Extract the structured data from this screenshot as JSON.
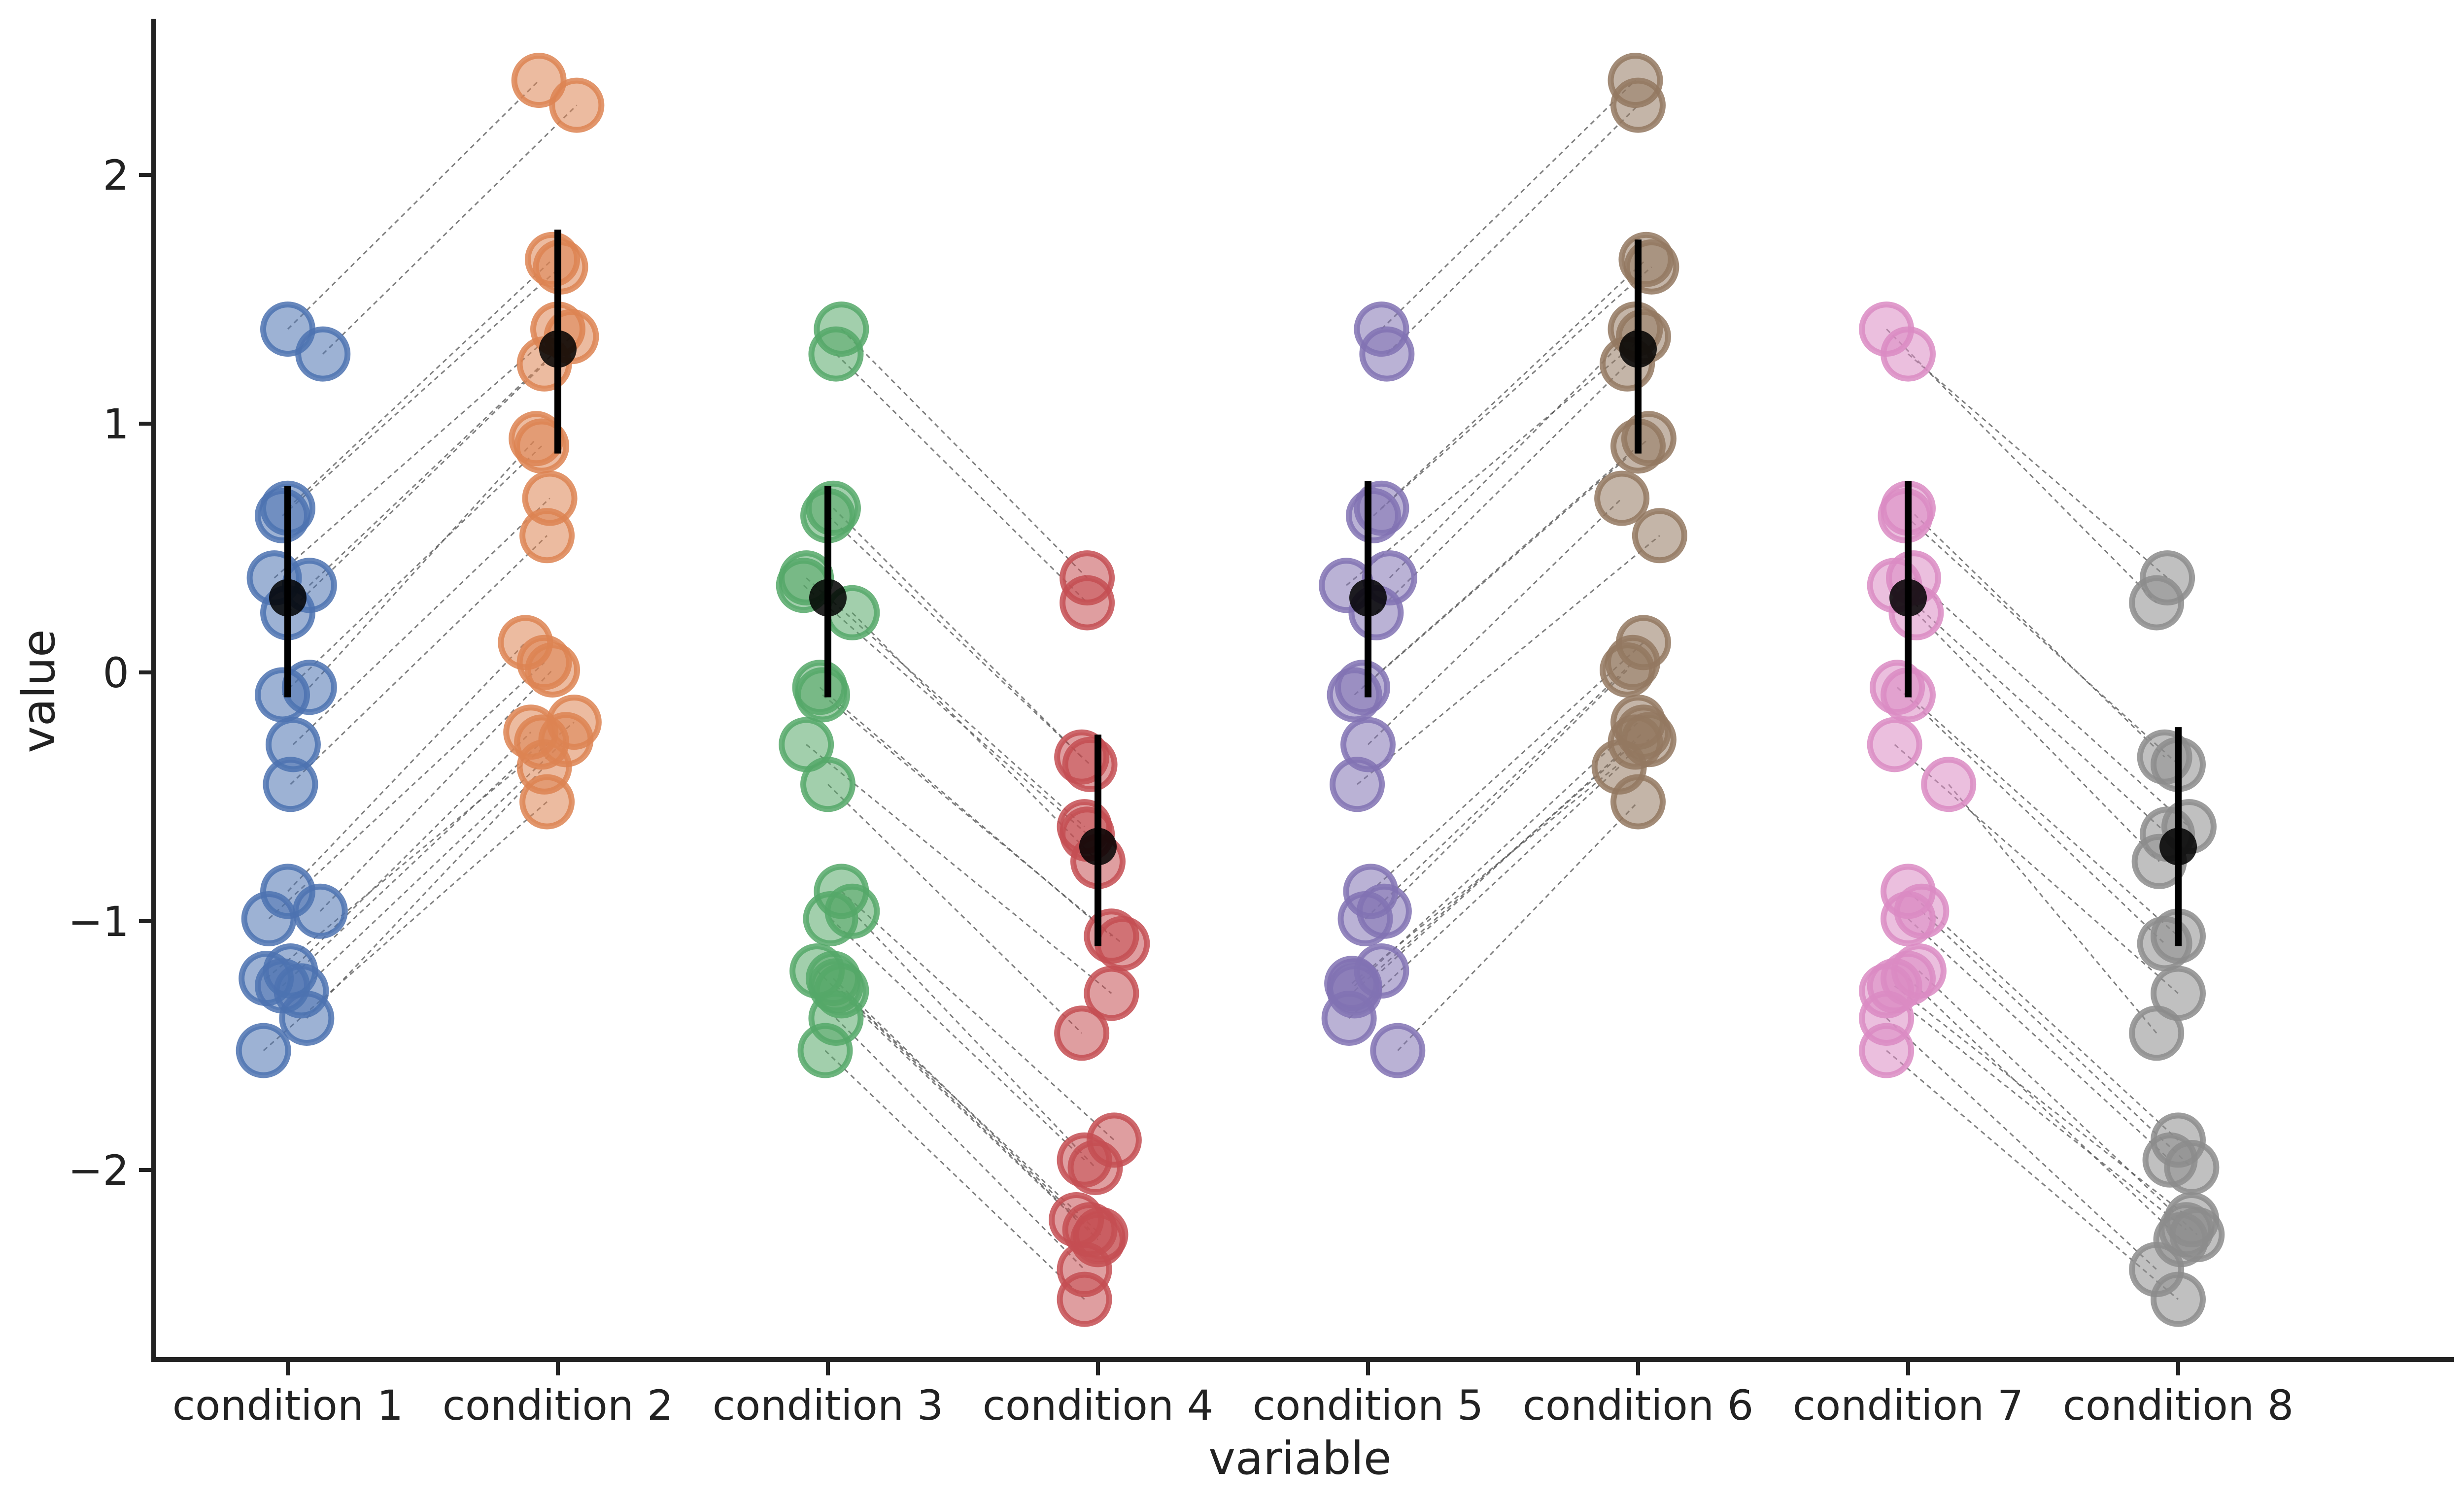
{
  "chart_data": {
    "type": "scatter",
    "title": "",
    "xlabel": "variable",
    "ylabel": "value",
    "ylim": [
      -2.7,
      2.6
    ],
    "yticks": [
      {
        "value": 2,
        "label": "2"
      },
      {
        "value": 1,
        "label": "1"
      },
      {
        "value": 0,
        "label": "0"
      },
      {
        "value": -1,
        "label": "−1"
      },
      {
        "value": -2,
        "label": "−2"
      }
    ],
    "categories": [
      "condition 1",
      "condition 2",
      "condition 3",
      "condition 4",
      "condition 5",
      "condition 6",
      "condition 7",
      "condition 8"
    ],
    "colors": [
      "#4c72b0",
      "#dd8452",
      "#55a868",
      "#c44e52",
      "#8172b3",
      "#937860",
      "#da8bc3",
      "#8c8c8c"
    ],
    "grid": false,
    "legend": "none",
    "series": [
      {
        "category": "condition 1",
        "points": [
          {
            "x": 0.0,
            "y": 1.38
          },
          {
            "x": 0.13,
            "y": 1.28
          },
          {
            "x": 0.0,
            "y": 0.66
          },
          {
            "x": -0.02,
            "y": 0.63
          },
          {
            "x": -0.05,
            "y": 0.38
          },
          {
            "x": 0.08,
            "y": 0.35
          },
          {
            "x": 0.0,
            "y": 0.24
          },
          {
            "x": 0.08,
            "y": -0.06
          },
          {
            "x": -0.02,
            "y": -0.09
          },
          {
            "x": 0.02,
            "y": -0.29
          },
          {
            "x": 0.01,
            "y": -0.45
          },
          {
            "x": 0.0,
            "y": -0.88
          },
          {
            "x": -0.07,
            "y": -0.99
          },
          {
            "x": 0.12,
            "y": -0.96
          },
          {
            "x": -0.08,
            "y": -1.23
          },
          {
            "x": 0.01,
            "y": -1.2
          },
          {
            "x": -0.02,
            "y": -1.26
          },
          {
            "x": 0.05,
            "y": -1.28
          },
          {
            "x": 0.07,
            "y": -1.39
          },
          {
            "x": -0.09,
            "y": -1.52
          }
        ],
        "mean": 0.3,
        "ci": [
          -0.1,
          0.75
        ]
      },
      {
        "category": "condition 2",
        "points": [
          {
            "x": -0.07,
            "y": 2.38
          },
          {
            "x": 0.07,
            "y": 2.28
          },
          {
            "x": -0.02,
            "y": 1.66
          },
          {
            "x": 0.01,
            "y": 1.63
          },
          {
            "x": 0.0,
            "y": 1.38
          },
          {
            "x": 0.05,
            "y": 1.35
          },
          {
            "x": -0.05,
            "y": 1.24
          },
          {
            "x": -0.08,
            "y": 0.94
          },
          {
            "x": -0.06,
            "y": 0.91
          },
          {
            "x": -0.03,
            "y": 0.7
          },
          {
            "x": -0.04,
            "y": 0.55
          },
          {
            "x": -0.12,
            "y": 0.12
          },
          {
            "x": -0.05,
            "y": 0.04
          },
          {
            "x": -0.02,
            "y": 0.01
          },
          {
            "x": 0.06,
            "y": -0.2
          },
          {
            "x": -0.1,
            "y": -0.24
          },
          {
            "x": -0.06,
            "y": -0.28
          },
          {
            "x": 0.03,
            "y": -0.27
          },
          {
            "x": -0.05,
            "y": -0.38
          },
          {
            "x": -0.04,
            "y": -0.52
          }
        ],
        "mean": 1.3,
        "ci": [
          0.88,
          1.78
        ]
      },
      {
        "category": "condition 3",
        "points": [
          {
            "x": 0.05,
            "y": 1.38
          },
          {
            "x": 0.03,
            "y": 1.28
          },
          {
            "x": 0.02,
            "y": 0.66
          },
          {
            "x": 0.0,
            "y": 0.63
          },
          {
            "x": -0.08,
            "y": 0.38
          },
          {
            "x": -0.09,
            "y": 0.35
          },
          {
            "x": 0.09,
            "y": 0.24
          },
          {
            "x": -0.03,
            "y": -0.06
          },
          {
            "x": -0.02,
            "y": -0.09
          },
          {
            "x": -0.08,
            "y": -0.29
          },
          {
            "x": 0.0,
            "y": -0.45
          },
          {
            "x": 0.05,
            "y": -0.88
          },
          {
            "x": 0.01,
            "y": -0.99
          },
          {
            "x": 0.09,
            "y": -0.96
          },
          {
            "x": -0.04,
            "y": -1.2
          },
          {
            "x": 0.02,
            "y": -1.23
          },
          {
            "x": 0.03,
            "y": -1.26
          },
          {
            "x": 0.05,
            "y": -1.28
          },
          {
            "x": 0.03,
            "y": -1.39
          },
          {
            "x": -0.01,
            "y": -1.52
          }
        ],
        "mean": 0.3,
        "ci": [
          -0.1,
          0.75
        ]
      },
      {
        "category": "condition 4",
        "points": [
          {
            "x": -0.04,
            "y": 0.38
          },
          {
            "x": -0.04,
            "y": 0.28
          },
          {
            "x": -0.06,
            "y": -0.34
          },
          {
            "x": -0.03,
            "y": -0.37
          },
          {
            "x": -0.05,
            "y": -0.62
          },
          {
            "x": -0.04,
            "y": -0.65
          },
          {
            "x": 0.0,
            "y": -0.76
          },
          {
            "x": 0.05,
            "y": -1.06
          },
          {
            "x": 0.09,
            "y": -1.09
          },
          {
            "x": 0.05,
            "y": -1.29
          },
          {
            "x": -0.06,
            "y": -1.45
          },
          {
            "x": 0.06,
            "y": -1.88
          },
          {
            "x": -0.05,
            "y": -1.96
          },
          {
            "x": -0.01,
            "y": -1.99
          },
          {
            "x": -0.08,
            "y": -2.2
          },
          {
            "x": -0.03,
            "y": -2.24
          },
          {
            "x": 0.0,
            "y": -2.28
          },
          {
            "x": 0.01,
            "y": -2.26
          },
          {
            "x": -0.05,
            "y": -2.4
          },
          {
            "x": -0.05,
            "y": -2.52
          }
        ],
        "mean": -0.7,
        "ci": [
          -1.1,
          -0.25
        ]
      },
      {
        "category": "condition 5",
        "points": [
          {
            "x": 0.05,
            "y": 1.38
          },
          {
            "x": 0.07,
            "y": 1.28
          },
          {
            "x": 0.05,
            "y": 0.66
          },
          {
            "x": 0.02,
            "y": 0.63
          },
          {
            "x": 0.08,
            "y": 0.38
          },
          {
            "x": -0.08,
            "y": 0.35
          },
          {
            "x": 0.03,
            "y": 0.24
          },
          {
            "x": -0.05,
            "y": -0.09
          },
          {
            "x": -0.02,
            "y": -0.06
          },
          {
            "x": 0.0,
            "y": -0.29
          },
          {
            "x": -0.04,
            "y": -0.45
          },
          {
            "x": 0.01,
            "y": -0.88
          },
          {
            "x": -0.01,
            "y": -0.99
          },
          {
            "x": 0.06,
            "y": -0.96
          },
          {
            "x": -0.05,
            "y": -1.26
          },
          {
            "x": 0.05,
            "y": -1.2
          },
          {
            "x": -0.05,
            "y": -1.28
          },
          {
            "x": -0.06,
            "y": -1.25
          },
          {
            "x": -0.07,
            "y": -1.39
          },
          {
            "x": 0.11,
            "y": -1.52
          }
        ],
        "mean": 0.3,
        "ci": [
          -0.1,
          0.77
        ]
      },
      {
        "category": "condition 6",
        "points": [
          {
            "x": -0.01,
            "y": 2.38
          },
          {
            "x": 0.0,
            "y": 2.28
          },
          {
            "x": 0.03,
            "y": 1.66
          },
          {
            "x": 0.05,
            "y": 1.63
          },
          {
            "x": -0.01,
            "y": 1.38
          },
          {
            "x": 0.02,
            "y": 1.35
          },
          {
            "x": -0.04,
            "y": 1.24
          },
          {
            "x": 0.04,
            "y": 0.94
          },
          {
            "x": 0.0,
            "y": 0.91
          },
          {
            "x": -0.06,
            "y": 0.7
          },
          {
            "x": 0.08,
            "y": 0.55
          },
          {
            "x": 0.02,
            "y": 0.12
          },
          {
            "x": -0.02,
            "y": 0.04
          },
          {
            "x": -0.04,
            "y": 0.01
          },
          {
            "x": 0.0,
            "y": -0.2
          },
          {
            "x": 0.02,
            "y": -0.24
          },
          {
            "x": -0.01,
            "y": -0.28
          },
          {
            "x": 0.04,
            "y": -0.27
          },
          {
            "x": -0.07,
            "y": -0.38
          },
          {
            "x": 0.0,
            "y": -0.52
          }
        ],
        "mean": 1.3,
        "ci": [
          0.88,
          1.74
        ]
      },
      {
        "category": "condition 7",
        "points": [
          {
            "x": -0.08,
            "y": 1.38
          },
          {
            "x": 0.0,
            "y": 1.28
          },
          {
            "x": 0.0,
            "y": 0.66
          },
          {
            "x": -0.01,
            "y": 0.63
          },
          {
            "x": 0.02,
            "y": 0.38
          },
          {
            "x": -0.05,
            "y": 0.35
          },
          {
            "x": 0.03,
            "y": 0.24
          },
          {
            "x": -0.04,
            "y": -0.06
          },
          {
            "x": 0.0,
            "y": -0.09
          },
          {
            "x": -0.05,
            "y": -0.29
          },
          {
            "x": 0.15,
            "y": -0.45
          },
          {
            "x": 0.0,
            "y": -0.88
          },
          {
            "x": 0.0,
            "y": -0.99
          },
          {
            "x": 0.05,
            "y": -0.96
          },
          {
            "x": -0.05,
            "y": -1.26
          },
          {
            "x": -0.08,
            "y": -1.28
          },
          {
            "x": 0.04,
            "y": -1.2
          },
          {
            "x": 0.0,
            "y": -1.23
          },
          {
            "x": -0.08,
            "y": -1.39
          },
          {
            "x": -0.08,
            "y": -1.52
          }
        ],
        "mean": 0.3,
        "ci": [
          -0.1,
          0.77
        ]
      },
      {
        "category": "condition 8",
        "points": [
          {
            "x": -0.08,
            "y": 0.28
          },
          {
            "x": -0.04,
            "y": 0.38
          },
          {
            "x": -0.05,
            "y": -0.34
          },
          {
            "x": 0.0,
            "y": -0.37
          },
          {
            "x": 0.04,
            "y": -0.62
          },
          {
            "x": -0.04,
            "y": -0.65
          },
          {
            "x": -0.07,
            "y": -0.76
          },
          {
            "x": -0.05,
            "y": -1.09
          },
          {
            "x": 0.0,
            "y": -1.06
          },
          {
            "x": 0.0,
            "y": -1.29
          },
          {
            "x": -0.08,
            "y": -1.45
          },
          {
            "x": 0.0,
            "y": -1.88
          },
          {
            "x": -0.03,
            "y": -1.96
          },
          {
            "x": 0.05,
            "y": -1.99
          },
          {
            "x": 0.05,
            "y": -2.2
          },
          {
            "x": 0.03,
            "y": -2.24
          },
          {
            "x": 0.07,
            "y": -2.26
          },
          {
            "x": 0.01,
            "y": -2.28
          },
          {
            "x": -0.08,
            "y": -2.4
          },
          {
            "x": 0.0,
            "y": -2.52
          }
        ],
        "mean": -0.7,
        "ci": [
          -1.1,
          -0.22
        ]
      }
    ],
    "pairings": [
      [
        0,
        1
      ],
      [
        2,
        3
      ],
      [
        4,
        5
      ],
      [
        6,
        7
      ]
    ]
  }
}
